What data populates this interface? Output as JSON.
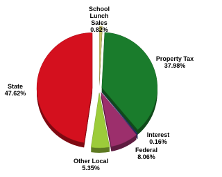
{
  "chart_data": {
    "type": "pie",
    "categories": [
      "School Lunch Sales",
      "Property Tax",
      "Interest",
      "Federal",
      "Other Local",
      "State"
    ],
    "values": [
      0.82,
      37.98,
      0.16,
      8.06,
      5.35,
      47.62
    ],
    "value_labels": [
      "0.82%",
      "37.98%",
      "0.16%",
      "8.06%",
      "5.35%",
      "47.62%"
    ],
    "colors": [
      "#c9c46a",
      "#1a7c2c",
      "#2a2f7a",
      "#9c2f6c",
      "#9ccc3a",
      "#d4101e"
    ]
  }
}
